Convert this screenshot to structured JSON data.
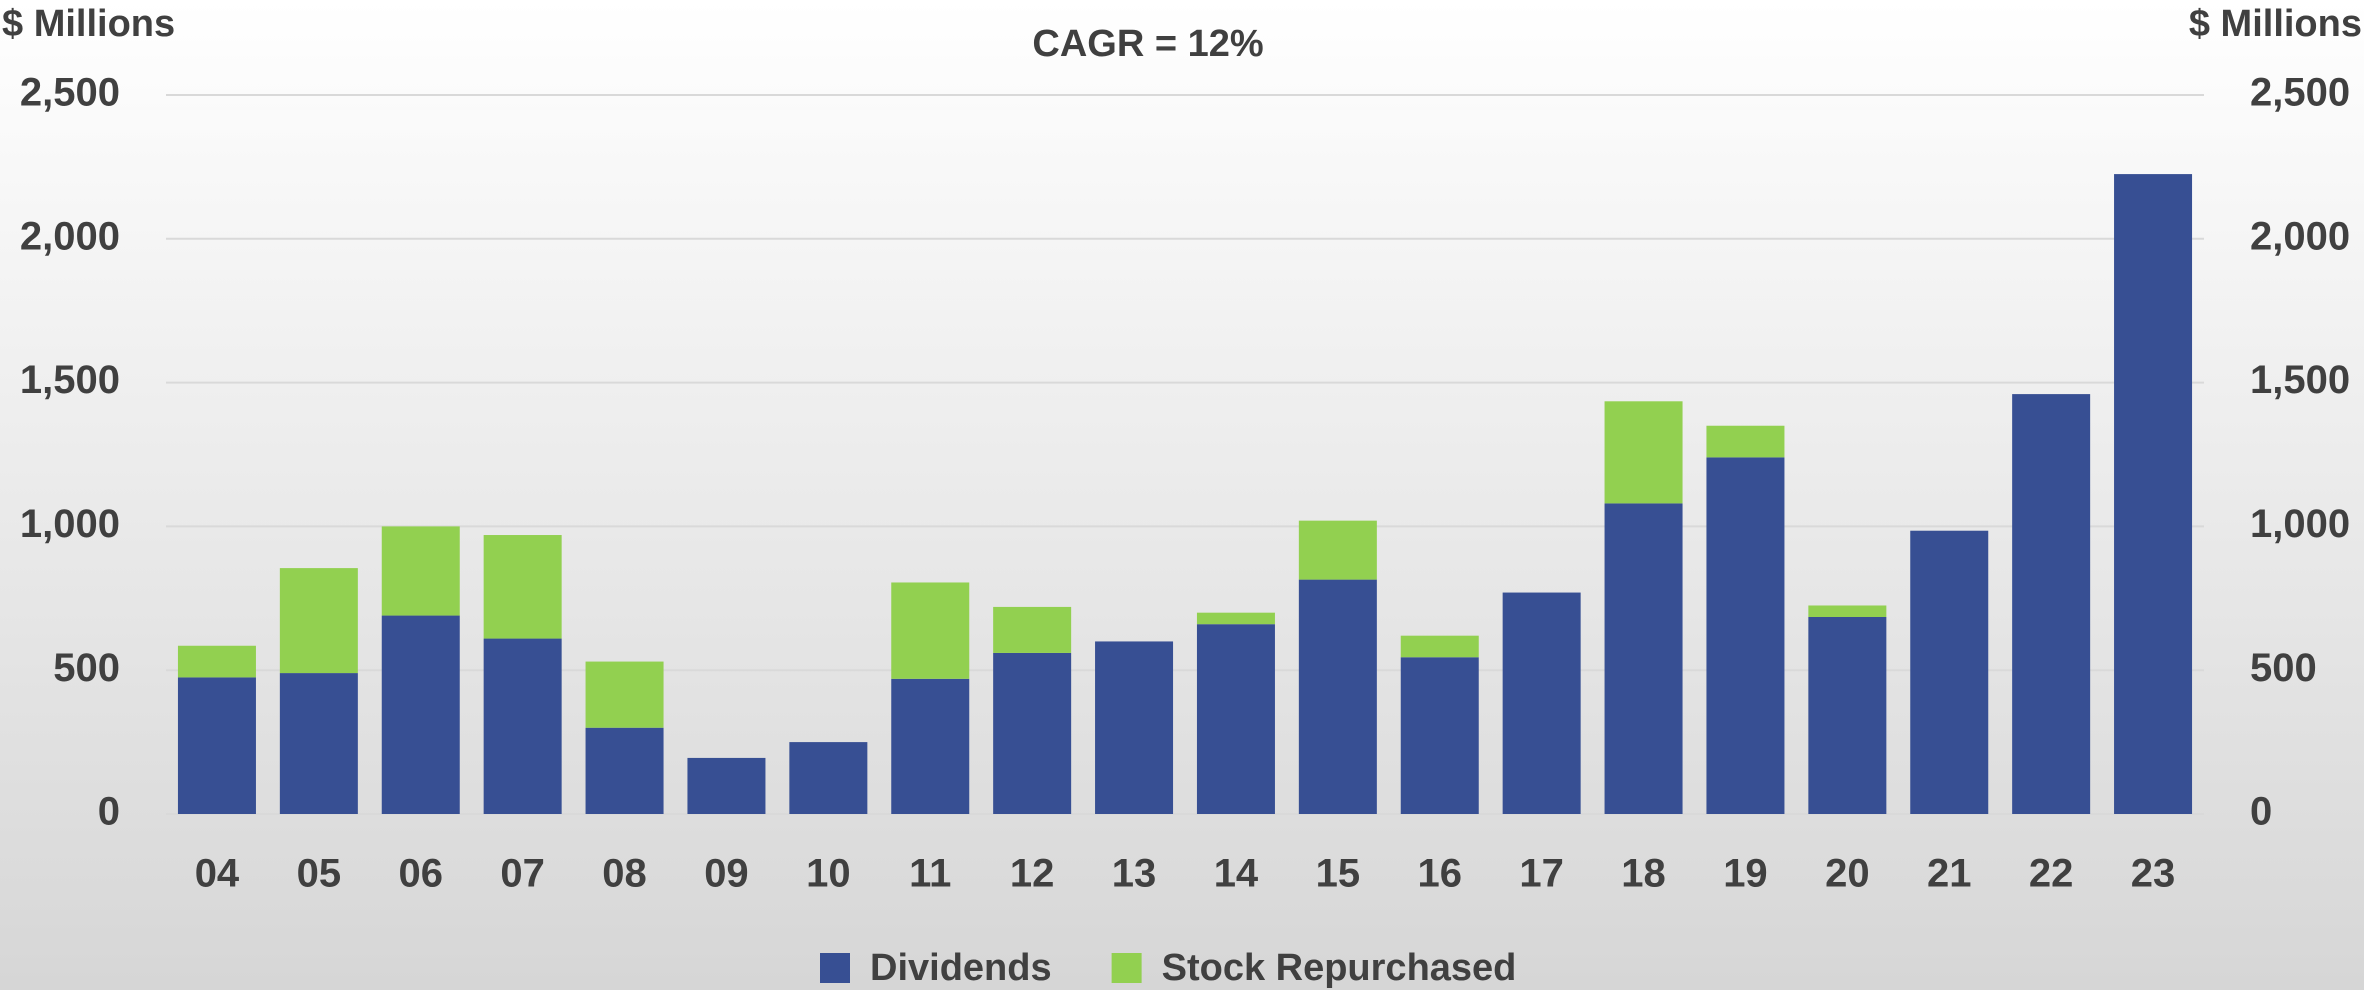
{
  "chart_data": {
    "type": "stacked_bar",
    "title": "CAGR = 12%",
    "y_label": "$ Millions",
    "y2_label": "$ Millions",
    "categories": [
      "04",
      "05",
      "06",
      "07",
      "08",
      "09",
      "10",
      "11",
      "12",
      "13",
      "14",
      "15",
      "16",
      "17",
      "18",
      "19",
      "20",
      "21",
      "22",
      "23"
    ],
    "series": [
      {
        "name": "Dividends",
        "color": "#374f93",
        "values": [
          475,
          490,
          690,
          610,
          300,
          195,
          250,
          470,
          560,
          600,
          660,
          815,
          545,
          770,
          1080,
          1240,
          685,
          985,
          1460,
          2225
        ]
      },
      {
        "name": "Stock Repurchased",
        "color": "#92d050",
        "values": [
          110,
          365,
          310,
          360,
          230,
          0,
          0,
          335,
          160,
          0,
          40,
          205,
          75,
          0,
          355,
          110,
          40,
          0,
          0,
          0
        ]
      }
    ],
    "ylim": [
      0,
      2500
    ],
    "yticks": [
      0,
      500,
      {
        "value": 1000,
        "label": "1,000"
      },
      {
        "value": 1500,
        "label": "1,500"
      },
      {
        "value": 2000,
        "label": "2,000"
      },
      {
        "value": 2500,
        "label": "2,500"
      }
    ],
    "y2lim": [
      0,
      2500
    ],
    "y2ticks": [
      0,
      500,
      {
        "value": 1000,
        "label": "1,000"
      },
      {
        "value": 1500,
        "label": "1,500"
      },
      {
        "value": 2000,
        "label": "2,000"
      },
      {
        "value": 2500,
        "label": "2,500"
      }
    ],
    "grid": true,
    "legend": "bottom"
  }
}
